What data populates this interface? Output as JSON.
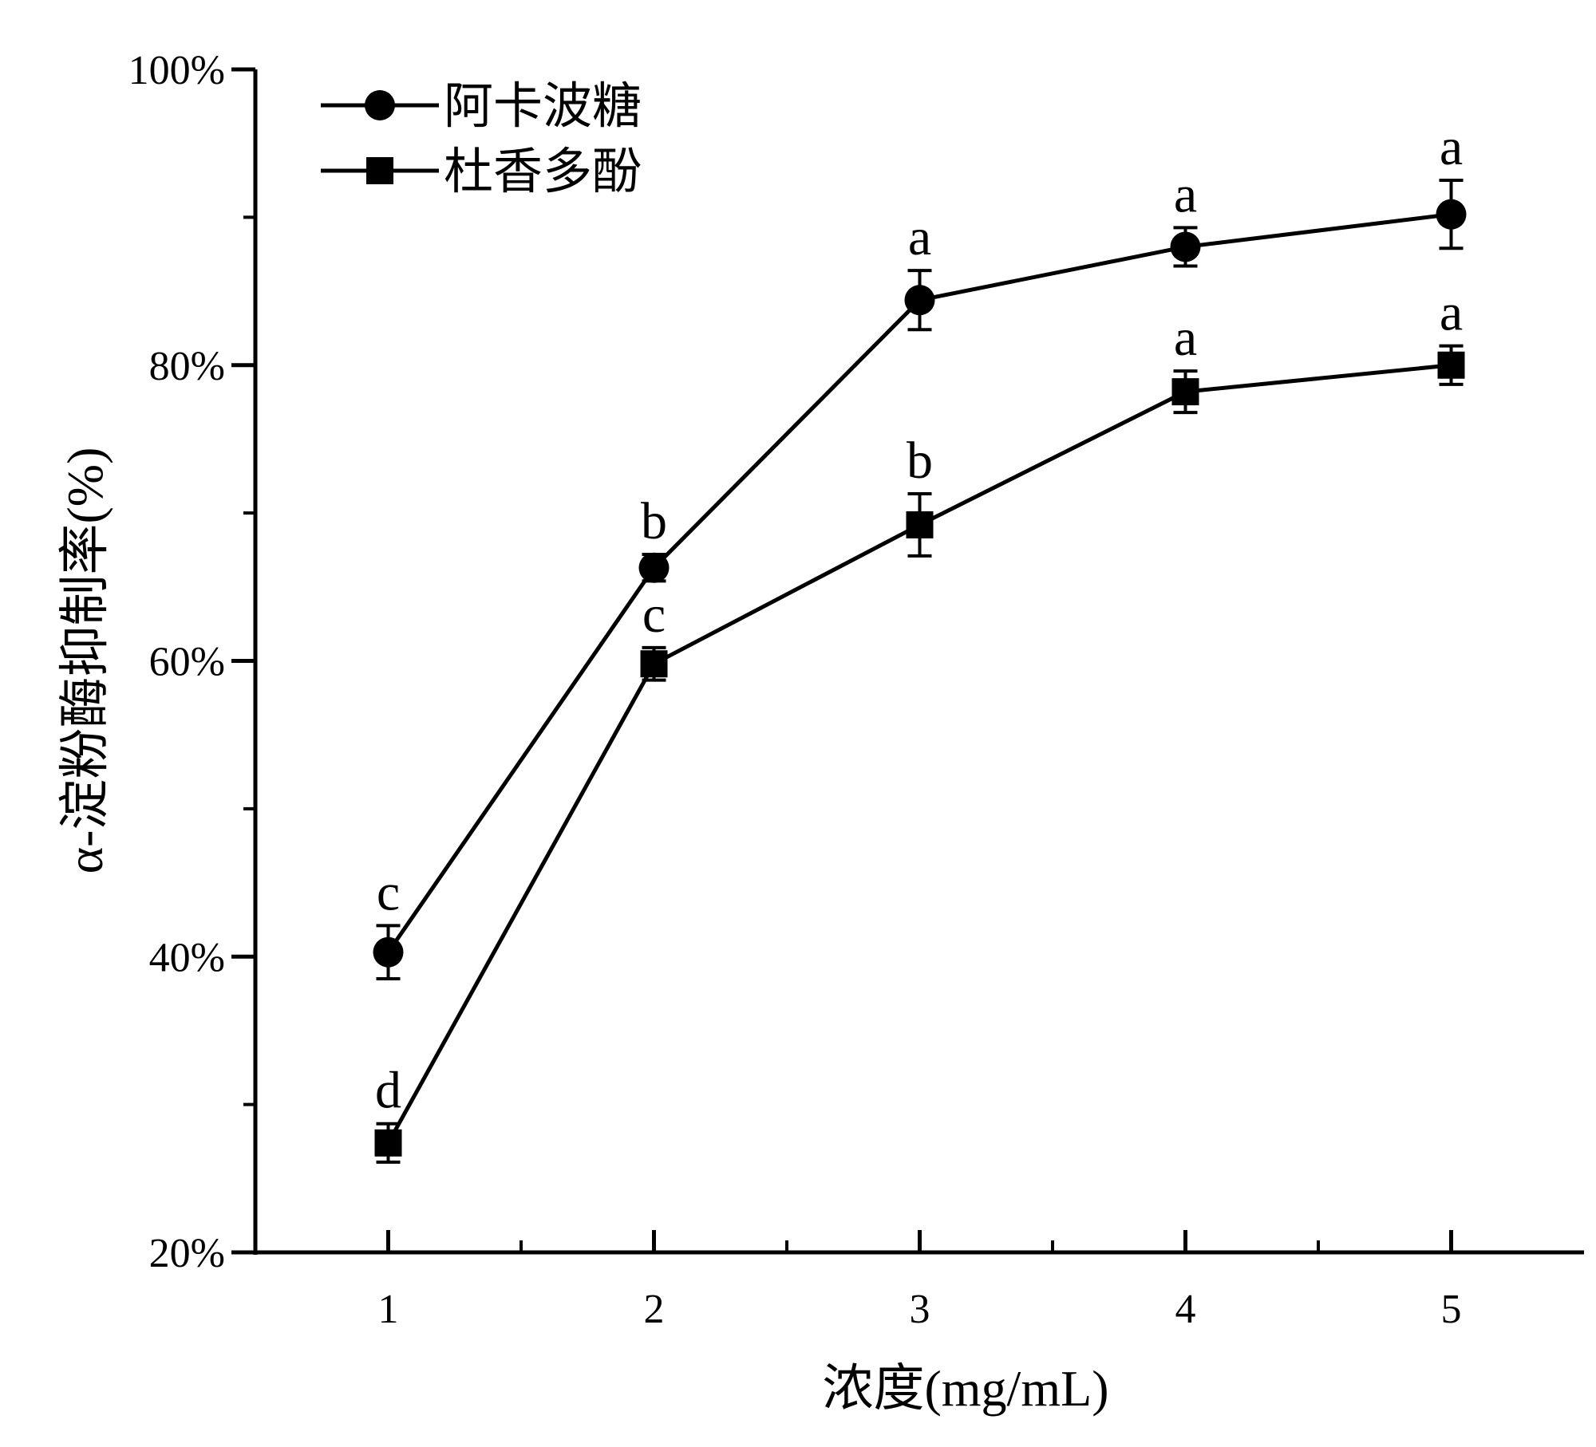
{
  "chart_data": {
    "type": "line",
    "xlabel": "浓度(mg/mL)",
    "ylabel": "α-淀粉酶抑制率(%)",
    "x": [
      1,
      2,
      3,
      4,
      5
    ],
    "x_ticks": [
      "1",
      "2",
      "3",
      "4",
      "5"
    ],
    "xlim": [
      0.5,
      5.5
    ],
    "ylim": [
      20,
      100
    ],
    "y_ticks": [
      20,
      40,
      60,
      80,
      100
    ],
    "y_tick_labels": [
      "20%",
      "40%",
      "60%",
      "80%",
      "100%"
    ],
    "y_minor_ticks": [
      30,
      50,
      70,
      90
    ],
    "legend_position": "top-left",
    "grid": false,
    "series": [
      {
        "name": "阿卡波糖",
        "marker": "circle",
        "color": "#000000",
        "values": [
          40.3,
          66.3,
          84.4,
          88.0,
          90.2
        ],
        "errors": [
          1.8,
          0.9,
          2.0,
          1.3,
          2.3
        ],
        "significance": [
          "c",
          "b",
          "a",
          "a",
          "a"
        ]
      },
      {
        "name": "杜香多酚",
        "marker": "square",
        "color": "#000000",
        "values": [
          27.4,
          59.8,
          69.2,
          78.2,
          80.0
        ],
        "errors": [
          1.3,
          1.1,
          2.1,
          1.4,
          1.3
        ],
        "significance": [
          "d",
          "c",
          "b",
          "a",
          "a"
        ]
      }
    ]
  }
}
